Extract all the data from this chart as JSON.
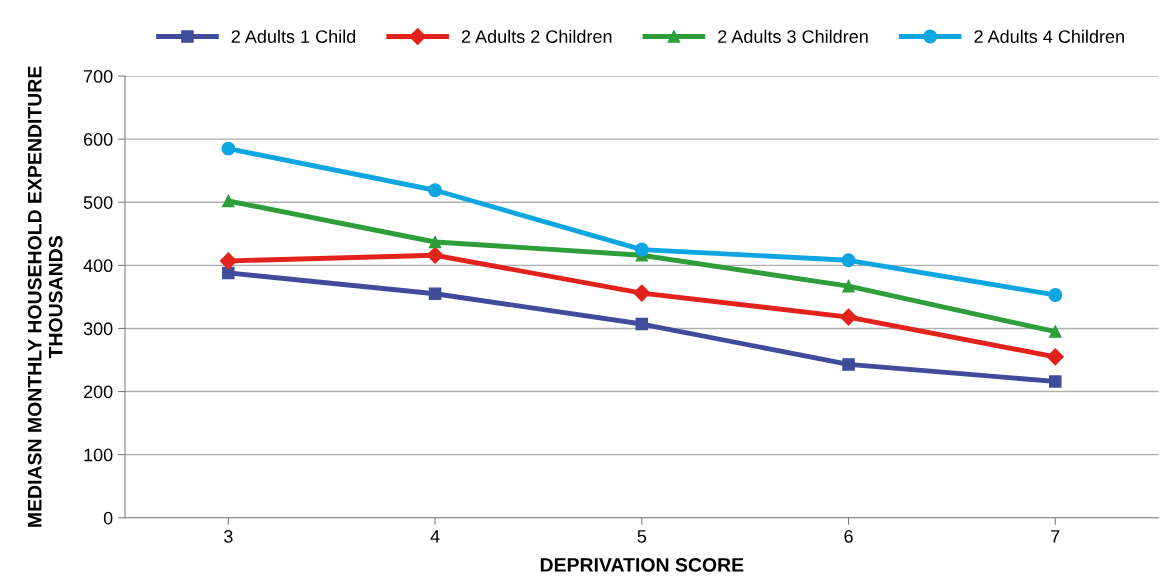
{
  "chart_data": {
    "type": "line",
    "xlabel": "DEPRIVATION SCORE",
    "ylabel": "MEDIASN MONTHLY HOUSEHOLD EXPENDITURE\nTHOUSANDS",
    "categories": [
      "3",
      "4",
      "5",
      "6",
      "7"
    ],
    "series": [
      {
        "name": "2 Adults 1 Child",
        "color": "#3f4c9b",
        "marker": "square",
        "values": [
          388,
          355,
          307,
          243,
          216
        ]
      },
      {
        "name": "2 Adults 2 Children",
        "color": "#e3231b",
        "marker": "diamond",
        "values": [
          407,
          416,
          356,
          318,
          255
        ]
      },
      {
        "name": "2 Adults 3 Children",
        "color": "#2e9e3a",
        "marker": "triangle",
        "values": [
          502,
          437,
          416,
          367,
          295
        ]
      },
      {
        "name": "2 Adults 4 Children",
        "color": "#0ea5e0",
        "marker": "circle",
        "values": [
          585,
          519,
          425,
          408,
          353
        ]
      }
    ],
    "ylim": [
      0,
      700
    ],
    "yticks": [
      0,
      100,
      200,
      300,
      400,
      500,
      600,
      700
    ],
    "grid": "y",
    "legend": "top",
    "line_style": "solid"
  }
}
